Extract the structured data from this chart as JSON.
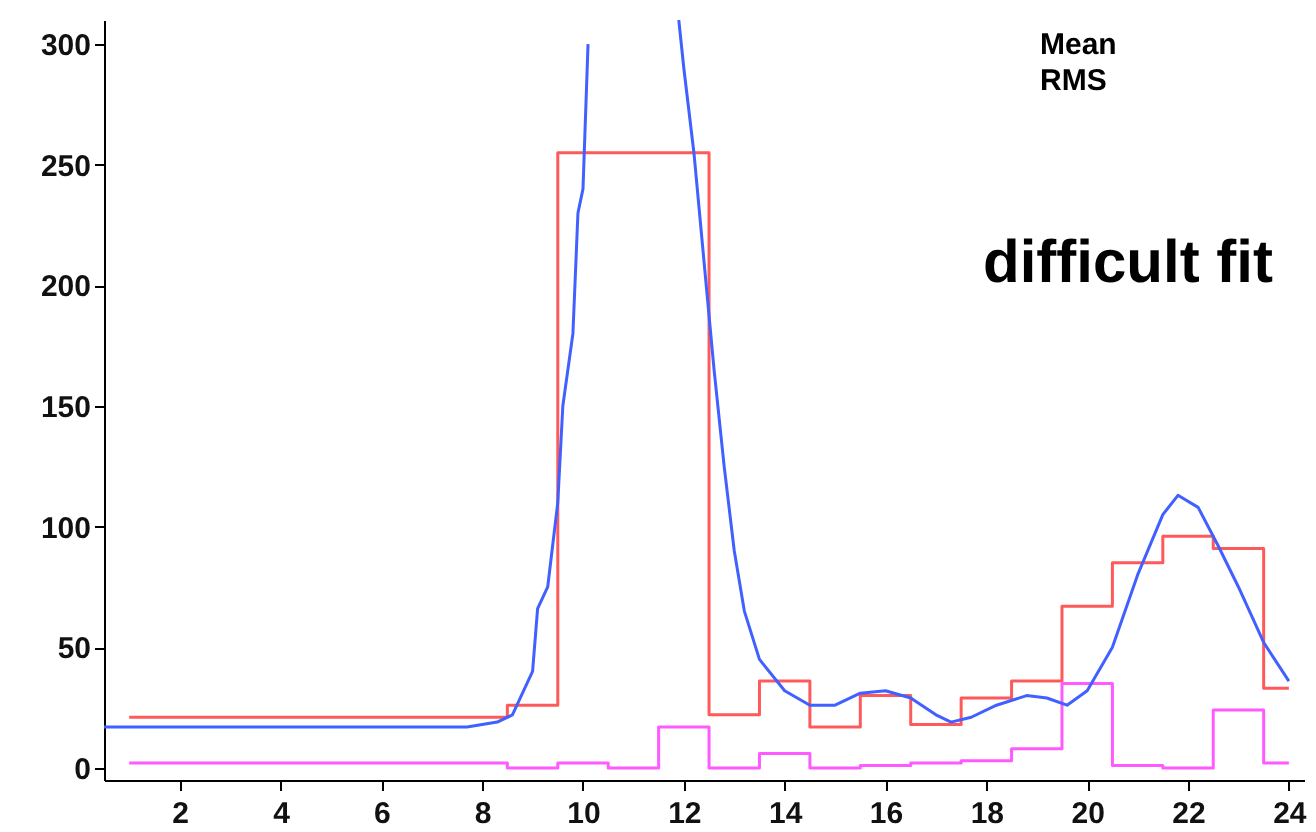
{
  "chart_data": {
    "type": "line",
    "xlim": [
      0.5,
      24.3
    ],
    "ylim": [
      -5,
      310
    ],
    "xticks": [
      2,
      4,
      6,
      8,
      10,
      12,
      14,
      16,
      18,
      20,
      22,
      24
    ],
    "yticks": [
      0,
      50,
      100,
      150,
      200,
      250,
      300
    ],
    "grid": false,
    "annotations": [
      "difficult fit",
      "Mean",
      "RMS"
    ],
    "series": [
      {
        "type": "step",
        "color": "#ff5a5a",
        "x": [
          1,
          2,
          3,
          4,
          5,
          6,
          7,
          8,
          9,
          10,
          11,
          12,
          13,
          14,
          15,
          16,
          17,
          18,
          19,
          20,
          21,
          22,
          23,
          24
        ],
        "values": [
          21,
          21,
          21,
          21,
          21,
          21,
          21,
          21,
          26,
          255,
          255,
          255,
          22,
          36,
          17,
          30,
          18,
          29,
          36,
          67,
          85,
          96,
          91,
          33
        ]
      },
      {
        "type": "step",
        "color": "#ff5aff",
        "x": [
          1,
          2,
          3,
          4,
          5,
          6,
          7,
          8,
          9,
          10,
          11,
          12,
          13,
          14,
          15,
          16,
          17,
          18,
          19,
          20,
          21,
          22,
          23,
          24
        ],
        "values": [
          2,
          2,
          2,
          2,
          2,
          2,
          2,
          2,
          0,
          2,
          0,
          17,
          0,
          6,
          0,
          1,
          2,
          3,
          8,
          35,
          1,
          0,
          24,
          2
        ]
      },
      {
        "color": "#4060ff",
        "x": [
          0.5,
          7.7,
          8.3,
          8.6,
          9.0,
          9.1,
          9.3,
          9.5,
          9.6,
          9.8,
          9.9,
          10.0,
          10.1,
          10.5,
          11.9,
          12.0,
          12.2,
          12.4,
          12.6,
          12.8,
          13.0,
          13.2,
          13.5,
          14.0,
          14.5,
          15.0,
          15.5,
          16.0,
          16.5,
          17.0,
          17.3,
          17.7,
          18.2,
          18.8,
          19.2,
          19.6,
          20.0,
          20.5,
          21.0,
          21.5,
          21.8,
          22.2,
          22.6,
          23.0,
          23.5,
          24.0
        ],
        "values": [
          17,
          17,
          19,
          22,
          40,
          66,
          75,
          110,
          150,
          180,
          230,
          240,
          300,
          null,
          310,
          290,
          255,
          210,
          165,
          125,
          90,
          65,
          45,
          32,
          26,
          26,
          31,
          32,
          29,
          22,
          19,
          21,
          26,
          30,
          29,
          26,
          32,
          50,
          80,
          105,
          113,
          108,
          92,
          75,
          52,
          36
        ]
      }
    ]
  }
}
